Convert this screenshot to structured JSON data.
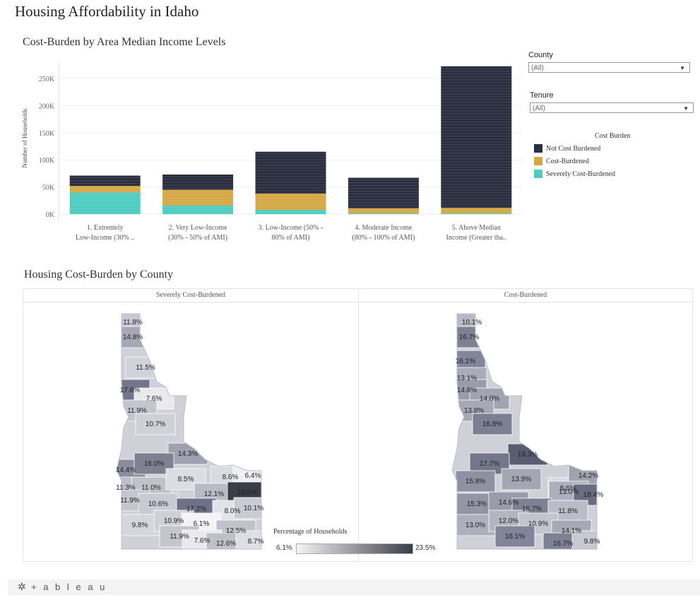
{
  "dashboard": {
    "title": "Housing Affordability in Idaho"
  },
  "bar_section": {
    "title": "Cost-Burden by Area Median Income Levels"
  },
  "map_section": {
    "title": "Housing Cost-Burden by County",
    "panel_left": "Severely Cost-Burdened",
    "panel_right": "Cost-Burdened",
    "color_legend_title": "Percentage of Households",
    "color_min": "6.1%",
    "color_max": "23.5%"
  },
  "filters": {
    "county": {
      "label": "County",
      "value": "(All)"
    },
    "tenure": {
      "label": "Tenure",
      "value": "(All)"
    }
  },
  "legend": {
    "title": "Cost Burden",
    "items": [
      {
        "label": "Not Cost Burdened",
        "color": "#2b2e3e"
      },
      {
        "label": "Cost-Burdened",
        "color": "#d4a845"
      },
      {
        "label": "Severely Cost-Burdened",
        "color": "#4ecdc0"
      }
    ]
  },
  "chart_data": {
    "type": "bar",
    "stacked": true,
    "ylabel": "Number of Households",
    "ylim": [
      0,
      280000
    ],
    "yticks": [
      "0K",
      "50K",
      "100K",
      "150K",
      "200K",
      "250K"
    ],
    "categories": [
      [
        "1. Extremely",
        "Low-Income (30% .."
      ],
      [
        "2. Very Low-Income",
        "(30% - 50% of AMI)"
      ],
      [
        "3. Low-Income (50% -",
        "80% of AMI)"
      ],
      [
        "4. Moderate Income",
        "(80% - 100% of AMI)"
      ],
      [
        "5. Above Median",
        "Income (Greater tha.."
      ]
    ],
    "series": [
      {
        "name": "Severely Cost-Burdened",
        "color": "#4ecdc0",
        "values": [
          40000,
          16000,
          8000,
          1500,
          1500
        ]
      },
      {
        "name": "Cost-Burdened",
        "color": "#d4a845",
        "values": [
          12000,
          29000,
          30000,
          9500,
          10000
        ]
      },
      {
        "name": "Not Cost Burdened",
        "color": "#2b2e3e",
        "values": [
          19000,
          28000,
          77000,
          56000,
          261000
        ]
      }
    ]
  },
  "maps": {
    "left_labels": [
      "11.8%",
      "14.8%",
      "11.5%",
      "17.6%",
      "7.6%",
      "11.9%",
      "10.7%",
      "14.3%",
      "14.4%",
      "16.0%",
      "11.3%",
      "11.0%",
      "8.5%",
      "8.6%",
      "6.4%",
      "11.9%",
      "10.6%",
      "12.1%",
      "23.5%",
      "17.2%",
      "8.0%",
      "10.1%",
      "9.8%",
      "10.9%",
      "6.1%",
      "12.5%",
      "11.9%",
      "7.6%",
      "12.6%",
      "8.7%"
    ],
    "right_labels": [
      "10.1%",
      "16.7%",
      "16.1%",
      "13.1%",
      "14.8%",
      "14.0%",
      "13.8%",
      "16.8%",
      "19.3%",
      "17.7%",
      "15.8%",
      "13.9%",
      "8.6%",
      "14.2%",
      "13.0%",
      "18.4%",
      "15.3%",
      "14.6%",
      "16.7%",
      "11.8%",
      "13.0%",
      "12.0%",
      "10.9%",
      "14.1%",
      "16.1%",
      "16.7%",
      "9.8%"
    ]
  },
  "footer": {
    "brand": "+ a b l e a u"
  }
}
